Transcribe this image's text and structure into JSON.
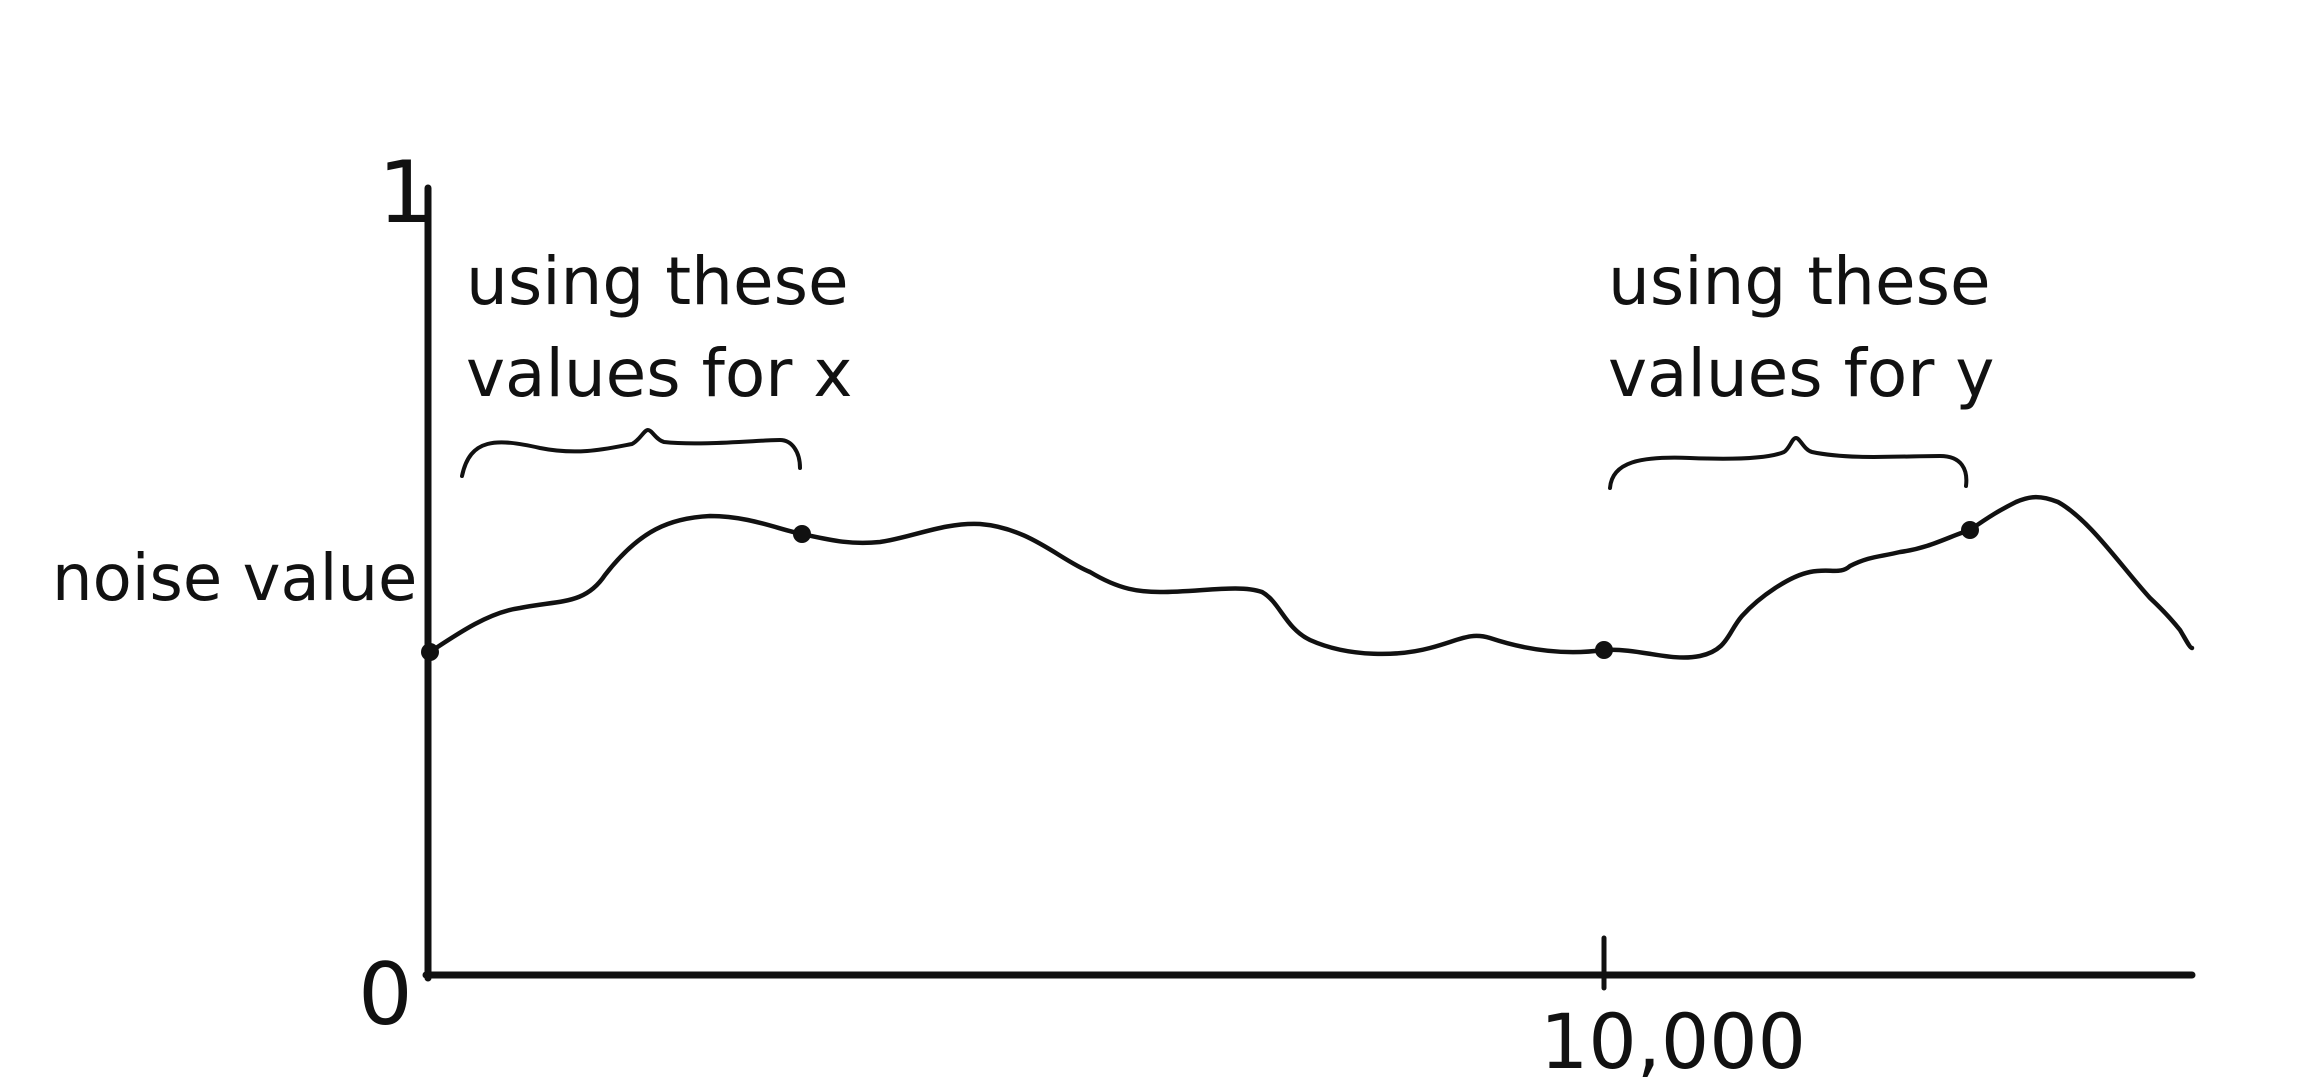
{
  "y_axis": {
    "top_tick": "1",
    "bottom_tick": "0",
    "label": "noise value"
  },
  "x_axis": {
    "tick_label": "10,000"
  },
  "annotations": {
    "x_range": {
      "line1": "using these",
      "line2": "values for x"
    },
    "y_range": {
      "line1": "using these",
      "line2": "values for y"
    }
  },
  "colors": {
    "ink": "#111111",
    "background": "#ffffff"
  }
}
